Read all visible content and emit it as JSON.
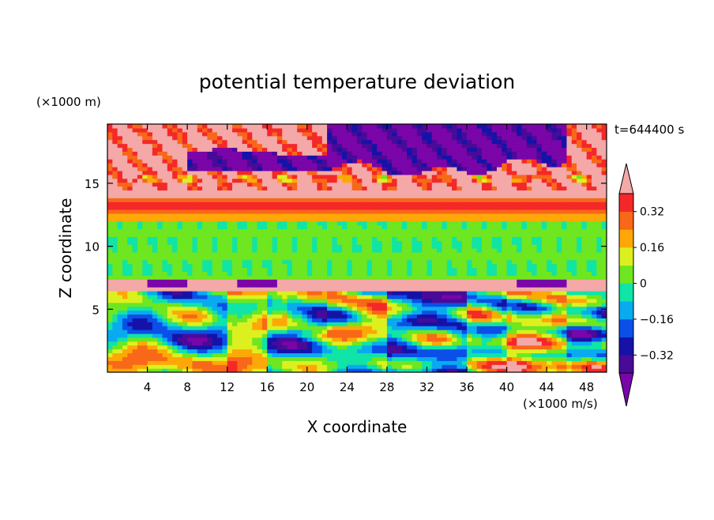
{
  "chart_data": {
    "type": "heatmap",
    "title": "potential temperature deviation",
    "xlabel": "X coordinate",
    "ylabel": "Z coordinate",
    "x_unit": "(×1000 m/s)",
    "y_unit": "(×1000 m)",
    "time_label": "t=644400 s",
    "xlim": [
      0,
      50
    ],
    "ylim": [
      0,
      19.7
    ],
    "x_ticks": [
      4,
      8,
      12,
      16,
      20,
      24,
      28,
      32,
      36,
      40,
      44,
      48
    ],
    "y_ticks": [
      5,
      10,
      15
    ],
    "colorbar": {
      "levels": [
        -0.4,
        -0.32,
        -0.24,
        -0.16,
        -0.08,
        0,
        0.08,
        0.16,
        0.24,
        0.32,
        0.4
      ],
      "tick_labels": [
        "0.32",
        "0.16",
        "0",
        "−0.16",
        "−0.32"
      ],
      "tick_values": [
        0.32,
        0.16,
        0,
        -0.16,
        -0.32
      ],
      "extend": "both",
      "colors": {
        "under": "#7a05a8",
        "bands": [
          "#4a0a98",
          "#1612a8",
          "#0a50e8",
          "#0aaaf0",
          "#10e4a6",
          "#6ee620",
          "#dcf020",
          "#fea808",
          "#f86818",
          "#f42828"
        ],
        "over": "#f4a8a8"
      }
    },
    "layers": [
      {
        "zmin": 0,
        "zmax": 6.5,
        "description": "turbulent mixed field",
        "value_range": [
          -0.4,
          0.4
        ]
      },
      {
        "zmin": 6.5,
        "zmax": 7.5,
        "value": 0.45
      },
      {
        "zmin": 7.5,
        "zmax": 12,
        "value": 0.02
      },
      {
        "zmin": 12,
        "zmax": 14.5,
        "value": 0.3
      },
      {
        "zmin": 14.5,
        "zmax": 19.7,
        "value_range": [
          -0.45,
          0.45
        ]
      }
    ]
  }
}
